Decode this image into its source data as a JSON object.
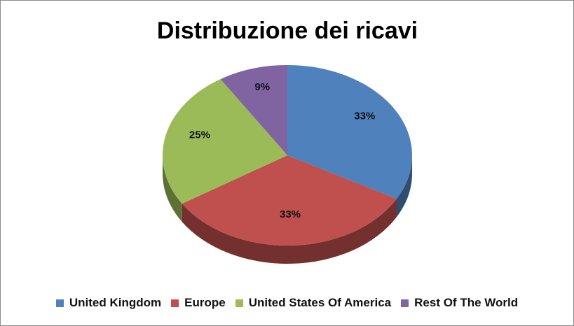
{
  "chart_data": {
    "type": "pie3d",
    "title": "Distribuzione dei ricavi",
    "categories": [
      "United Kingdom",
      "Europe",
      "United States Of America",
      "Rest Of The World"
    ],
    "values": [
      33,
      33,
      25,
      9
    ],
    "value_labels": [
      "33%",
      "33%",
      "25%",
      "9%"
    ],
    "colors": [
      "#4f81bd",
      "#c0504d",
      "#9bbb59",
      "#8064a2"
    ],
    "legend": "bottom"
  }
}
